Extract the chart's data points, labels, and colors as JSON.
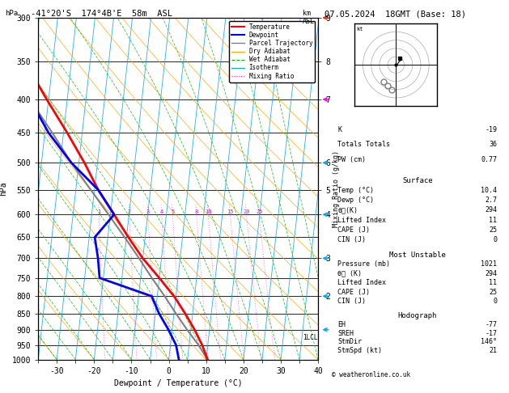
{
  "title_left": "-41°20'S  174°4B'E  58m  ASL",
  "title_right": "07.05.2024  18GMT (Base: 18)",
  "xlabel": "Dewpoint / Temperature (°C)",
  "pressure_levels": [
    300,
    350,
    400,
    450,
    500,
    550,
    600,
    650,
    700,
    750,
    800,
    850,
    900,
    950,
    1000
  ],
  "temp_color": "#ff0000",
  "dewp_color": "#0000ff",
  "parcel_color": "#808080",
  "dryadiabat_color": "#ffa500",
  "wetadiabat_color": "#00bb00",
  "isotherm_color": "#00aaff",
  "mixratio_color": "#ff00ff",
  "xlim": [
    -35,
    40
  ],
  "skew": 8.5,
  "p_min": 300,
  "p_max": 1000,
  "temp_profile": {
    "pressure": [
      1000,
      950,
      900,
      850,
      800,
      750,
      700,
      650,
      600,
      550,
      500,
      450,
      400,
      350,
      300
    ],
    "temp": [
      10.4,
      8.5,
      6.0,
      3.0,
      -0.5,
      -5.0,
      -10.0,
      -14.5,
      -19.0,
      -24.0,
      -28.5,
      -34.0,
      -40.5,
      -47.5,
      -55.0
    ]
  },
  "dewp_profile": {
    "pressure": [
      1000,
      950,
      900,
      850,
      800,
      750,
      700,
      650,
      600,
      550,
      500,
      450,
      400,
      350,
      300
    ],
    "temp": [
      2.7,
      1.5,
      -1.0,
      -4.0,
      -6.5,
      -21.0,
      -22.0,
      -23.5,
      -19.0,
      -24.0,
      -32.0,
      -39.0,
      -45.0,
      -52.0,
      -58.0
    ]
  },
  "parcel_profile": {
    "pressure": [
      1000,
      950,
      900,
      850,
      800,
      750,
      700,
      650,
      600,
      550,
      500,
      450,
      400,
      350,
      300
    ],
    "temp": [
      10.4,
      7.5,
      4.0,
      0.5,
      -3.0,
      -7.0,
      -11.0,
      -15.5,
      -20.5,
      -26.0,
      -32.0,
      -38.0,
      -45.0,
      -52.0,
      -58.0
    ]
  },
  "mixing_ratio_values": [
    1,
    2,
    3,
    4,
    5,
    8,
    10,
    15,
    20,
    25
  ],
  "km_labels": {
    "300": "9",
    "350": "8",
    "400": "7",
    "500": "6",
    "550": "5",
    "600": "4",
    "700": "3",
    "800": "2"
  },
  "surface_info": {
    "K": -19,
    "Totals_Totals": 36,
    "PW_cm": 0.77,
    "Temp_C": 10.4,
    "Dewp_C": 2.7,
    "theta_e_K": 294,
    "Lifted_Index": 11,
    "CAPE_J": 25,
    "CIN_J": 0
  },
  "most_unstable": {
    "Pressure_mb": 1021,
    "theta_e_K": 294,
    "Lifted_Index": 11,
    "CAPE_J": 25,
    "CIN_J": 0
  },
  "hodograph": {
    "EH": -77,
    "SREH": -17,
    "StmDir": 146,
    "StmSpd_kt": 21
  },
  "wind_colors_left": [
    "#ff2200",
    "#ff00ff",
    "#00aaff",
    "#00aaff",
    "#00aaff",
    "#00aaff",
    "#00aaff"
  ],
  "wind_p_levels": [
    300,
    400,
    500,
    600,
    700,
    800,
    900
  ]
}
